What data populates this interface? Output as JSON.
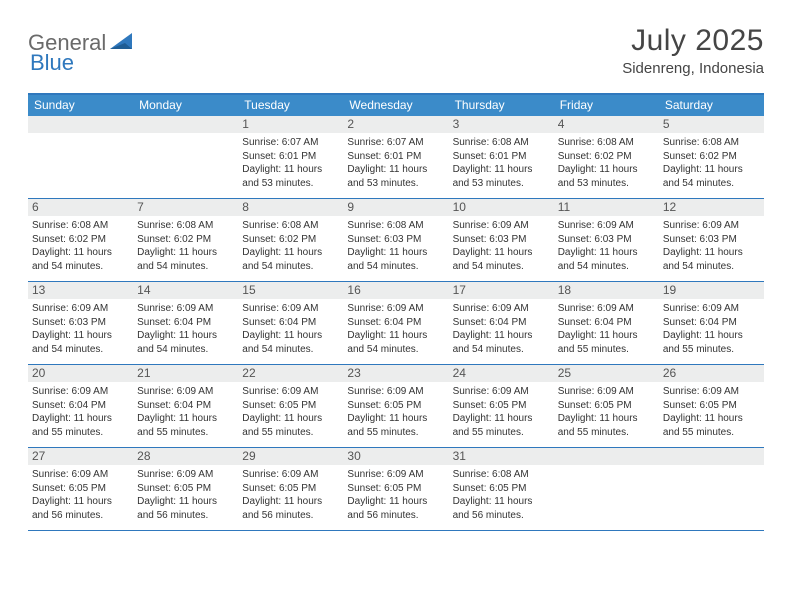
{
  "brand": {
    "part1": "General",
    "part2": "Blue"
  },
  "title": "July 2025",
  "subtitle": "Sidenreng, Indonesia",
  "colors": {
    "header_bg": "#3b8bc9",
    "border": "#2f78bd",
    "daynum_bg": "#eceded",
    "text": "#333333",
    "title_color": "#454545"
  },
  "daynames": [
    "Sunday",
    "Monday",
    "Tuesday",
    "Wednesday",
    "Thursday",
    "Friday",
    "Saturday"
  ],
  "weeks": [
    [
      null,
      null,
      {
        "n": "1",
        "sr": "6:07 AM",
        "ss": "6:01 PM",
        "dl": "11 hours and 53 minutes."
      },
      {
        "n": "2",
        "sr": "6:07 AM",
        "ss": "6:01 PM",
        "dl": "11 hours and 53 minutes."
      },
      {
        "n": "3",
        "sr": "6:08 AM",
        "ss": "6:01 PM",
        "dl": "11 hours and 53 minutes."
      },
      {
        "n": "4",
        "sr": "6:08 AM",
        "ss": "6:02 PM",
        "dl": "11 hours and 53 minutes."
      },
      {
        "n": "5",
        "sr": "6:08 AM",
        "ss": "6:02 PM",
        "dl": "11 hours and 54 minutes."
      }
    ],
    [
      {
        "n": "6",
        "sr": "6:08 AM",
        "ss": "6:02 PM",
        "dl": "11 hours and 54 minutes."
      },
      {
        "n": "7",
        "sr": "6:08 AM",
        "ss": "6:02 PM",
        "dl": "11 hours and 54 minutes."
      },
      {
        "n": "8",
        "sr": "6:08 AM",
        "ss": "6:02 PM",
        "dl": "11 hours and 54 minutes."
      },
      {
        "n": "9",
        "sr": "6:08 AM",
        "ss": "6:03 PM",
        "dl": "11 hours and 54 minutes."
      },
      {
        "n": "10",
        "sr": "6:09 AM",
        "ss": "6:03 PM",
        "dl": "11 hours and 54 minutes."
      },
      {
        "n": "11",
        "sr": "6:09 AM",
        "ss": "6:03 PM",
        "dl": "11 hours and 54 minutes."
      },
      {
        "n": "12",
        "sr": "6:09 AM",
        "ss": "6:03 PM",
        "dl": "11 hours and 54 minutes."
      }
    ],
    [
      {
        "n": "13",
        "sr": "6:09 AM",
        "ss": "6:03 PM",
        "dl": "11 hours and 54 minutes."
      },
      {
        "n": "14",
        "sr": "6:09 AM",
        "ss": "6:04 PM",
        "dl": "11 hours and 54 minutes."
      },
      {
        "n": "15",
        "sr": "6:09 AM",
        "ss": "6:04 PM",
        "dl": "11 hours and 54 minutes."
      },
      {
        "n": "16",
        "sr": "6:09 AM",
        "ss": "6:04 PM",
        "dl": "11 hours and 54 minutes."
      },
      {
        "n": "17",
        "sr": "6:09 AM",
        "ss": "6:04 PM",
        "dl": "11 hours and 54 minutes."
      },
      {
        "n": "18",
        "sr": "6:09 AM",
        "ss": "6:04 PM",
        "dl": "11 hours and 55 minutes."
      },
      {
        "n": "19",
        "sr": "6:09 AM",
        "ss": "6:04 PM",
        "dl": "11 hours and 55 minutes."
      }
    ],
    [
      {
        "n": "20",
        "sr": "6:09 AM",
        "ss": "6:04 PM",
        "dl": "11 hours and 55 minutes."
      },
      {
        "n": "21",
        "sr": "6:09 AM",
        "ss": "6:04 PM",
        "dl": "11 hours and 55 minutes."
      },
      {
        "n": "22",
        "sr": "6:09 AM",
        "ss": "6:05 PM",
        "dl": "11 hours and 55 minutes."
      },
      {
        "n": "23",
        "sr": "6:09 AM",
        "ss": "6:05 PM",
        "dl": "11 hours and 55 minutes."
      },
      {
        "n": "24",
        "sr": "6:09 AM",
        "ss": "6:05 PM",
        "dl": "11 hours and 55 minutes."
      },
      {
        "n": "25",
        "sr": "6:09 AM",
        "ss": "6:05 PM",
        "dl": "11 hours and 55 minutes."
      },
      {
        "n": "26",
        "sr": "6:09 AM",
        "ss": "6:05 PM",
        "dl": "11 hours and 55 minutes."
      }
    ],
    [
      {
        "n": "27",
        "sr": "6:09 AM",
        "ss": "6:05 PM",
        "dl": "11 hours and 56 minutes."
      },
      {
        "n": "28",
        "sr": "6:09 AM",
        "ss": "6:05 PM",
        "dl": "11 hours and 56 minutes."
      },
      {
        "n": "29",
        "sr": "6:09 AM",
        "ss": "6:05 PM",
        "dl": "11 hours and 56 minutes."
      },
      {
        "n": "30",
        "sr": "6:09 AM",
        "ss": "6:05 PM",
        "dl": "11 hours and 56 minutes."
      },
      {
        "n": "31",
        "sr": "6:08 AM",
        "ss": "6:05 PM",
        "dl": "11 hours and 56 minutes."
      },
      null,
      null
    ]
  ],
  "labels": {
    "sunrise": "Sunrise:",
    "sunset": "Sunset:",
    "daylight": "Daylight:"
  }
}
